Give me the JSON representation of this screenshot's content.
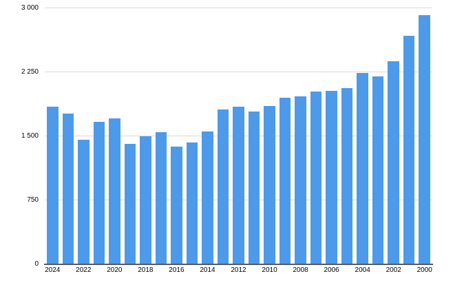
{
  "chart_data": {
    "type": "bar",
    "title": "",
    "xlabel": "",
    "ylabel": "",
    "categories": [
      "2024",
      "2023",
      "2022",
      "2021",
      "2020",
      "2019",
      "2018",
      "2017",
      "2016",
      "2015",
      "2014",
      "2013",
      "2012",
      "2011",
      "2010",
      "2009",
      "2008",
      "2007",
      "2006",
      "2005",
      "2004",
      "2003",
      "2002",
      "2001",
      "2000"
    ],
    "values": [
      1835,
      1755,
      1450,
      1665,
      1700,
      1400,
      1490,
      1540,
      1370,
      1420,
      1550,
      1805,
      1840,
      1785,
      1845,
      1945,
      1960,
      2020,
      2025,
      2060,
      2230,
      2195,
      2375,
      2670,
      2915
    ],
    "ylim": [
      0,
      3000
    ],
    "y_ticks": [
      {
        "value": 3000,
        "label": "3 000"
      },
      {
        "value": 2250,
        "label": "2 250"
      },
      {
        "value": 1500,
        "label": "1 500"
      },
      {
        "value": 750,
        "label": "750"
      },
      {
        "value": 0,
        "label": "0"
      }
    ],
    "x_tick_step": 2,
    "grid": "horizontal",
    "legend": "none",
    "colors": {
      "bar": "#4D9AEA",
      "gridline": "#DADADA",
      "baseline": "#56595C",
      "tick_label": "#000000",
      "background": "#FFFFFF"
    }
  }
}
